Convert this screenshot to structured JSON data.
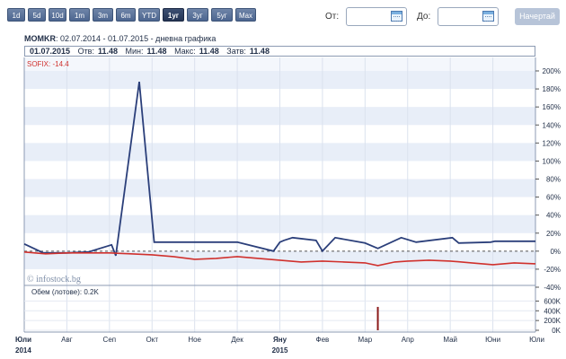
{
  "range_buttons": [
    "1d",
    "5d",
    "10d",
    "1m",
    "3m",
    "6m",
    "YTD",
    "1yr",
    "3yr",
    "5yr",
    "Max"
  ],
  "range_buttons_display": [
    "1d",
    "5d",
    "10d",
    "1m",
    "3m",
    "6m",
    "YTD",
    "1уг",
    "3уг",
    "5уг",
    "Max"
  ],
  "active_range": "1уг",
  "date_from": {
    "label": "От:",
    "value": ""
  },
  "date_to": {
    "label": "До:",
    "value": ""
  },
  "go_button": "Начертай",
  "title": {
    "symbol": "MOMKR",
    "period": ": 02.07.2014 - 01.07.2015 - дневна графика"
  },
  "stats": {
    "date": "01.07.2015",
    "open_label": "Отв:",
    "open": "11.48",
    "low_label": "Мин:",
    "low": "11.48",
    "high_label": "Макс:",
    "high": "11.48",
    "close_label": "Затв:",
    "close": "11.48"
  },
  "sofix_label": "SOFIX: -14.4",
  "volume_label": "Обем (лотове): 0.2K",
  "watermark": "© infostock.bg",
  "colors": {
    "main": "#2b3f7a",
    "sofix": "#d0312d",
    "volume": "#8b1a1a",
    "band": "#e8eef8"
  },
  "chart_data": [
    {
      "type": "line",
      "title": "",
      "x_axis_labels": [
        "Юли",
        "Авг",
        "Сеп",
        "Окт",
        "Ное",
        "Дек",
        "Яну",
        "Фев",
        "Мар",
        "Апр",
        "Май",
        "Юни",
        "Юли"
      ],
      "x_axis_years": [
        {
          "label": "2014",
          "at": "Юли"
        },
        {
          "label": "2015",
          "at": "Яну"
        }
      ],
      "y_axis_ticks": [
        "200%",
        "180%",
        "160%",
        "140%",
        "120%",
        "100%",
        "80%",
        "60%",
        "40%",
        "20%",
        "0%",
        "-20%",
        "-40%"
      ],
      "ylim": [
        -40,
        200
      ],
      "y_unit": "%",
      "x_unit": "months since Jul 2014",
      "grid": true,
      "series": [
        {
          "name": "MOMKR",
          "points": [
            [
              0,
              8
            ],
            [
              0.45,
              -2
            ],
            [
              1,
              -2
            ],
            [
              1.5,
              -1
            ],
            [
              2.05,
              7
            ],
            [
              2.15,
              -5
            ],
            [
              2.7,
              188
            ],
            [
              3.05,
              10
            ],
            [
              3.5,
              10
            ],
            [
              4,
              10
            ],
            [
              5,
              10
            ],
            [
              6,
              10
            ],
            [
              5.85,
              0
            ],
            [
              6.1,
              12
            ],
            [
              6.3,
              15
            ],
            [
              6.85,
              12
            ],
            [
              7,
              0
            ],
            [
              7.3,
              15
            ],
            [
              8,
              9
            ],
            [
              8.3,
              3
            ],
            [
              8.85,
              15
            ],
            [
              9.2,
              10
            ],
            [
              10.05,
              15
            ],
            [
              10.2,
              9
            ],
            [
              10.95,
              10
            ],
            [
              11.05,
              11
            ],
            [
              12,
              11
            ]
          ]
        },
        {
          "name": "SOFIX",
          "points": [
            [
              0,
              -1
            ],
            [
              0.5,
              -3
            ],
            [
              1,
              -2
            ],
            [
              1.5,
              -2
            ],
            [
              2,
              -2
            ],
            [
              2.5,
              -3
            ],
            [
              3,
              -4
            ],
            [
              3.5,
              -6
            ],
            [
              4,
              -9
            ],
            [
              4.5,
              -8
            ],
            [
              5,
              -6
            ],
            [
              5.5,
              -8
            ],
            [
              6,
              -10
            ],
            [
              6.5,
              -12
            ],
            [
              7,
              -11
            ],
            [
              7.5,
              -12
            ],
            [
              8,
              -13
            ],
            [
              8.3,
              -16
            ],
            [
              8.7,
              -12
            ],
            [
              9,
              -11
            ],
            [
              9.5,
              -10
            ],
            [
              10,
              -11
            ],
            [
              10.5,
              -13
            ],
            [
              11,
              -15
            ],
            [
              11.5,
              -13
            ],
            [
              12,
              -14
            ]
          ]
        }
      ]
    },
    {
      "type": "bar",
      "title": "Обем (лотове): 0.2K",
      "y_axis_ticks": [
        "600K",
        "400K",
        "200K",
        "0K"
      ],
      "ylim": [
        0,
        700
      ],
      "y_unit": "K",
      "bars": [
        {
          "x": 8.3,
          "value": 480
        }
      ]
    }
  ]
}
